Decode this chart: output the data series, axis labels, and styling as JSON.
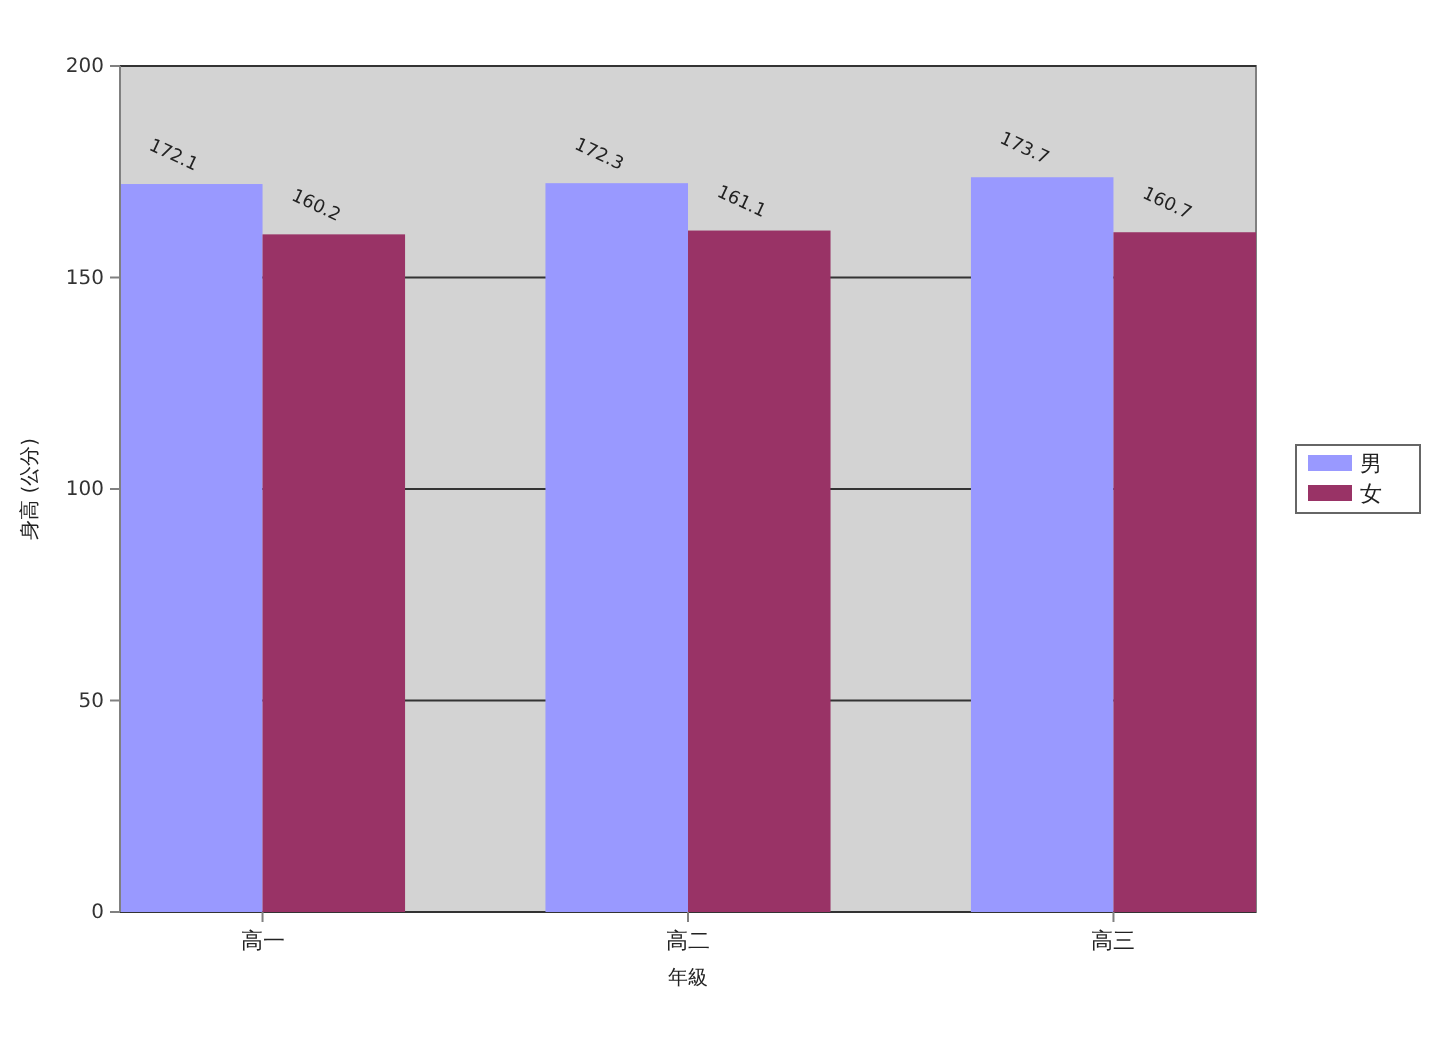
{
  "chart_data": {
    "type": "bar",
    "xlabel": "年級",
    "ylabel": "身高 (公分)",
    "categories": [
      "高一",
      "高二",
      "高三"
    ],
    "series": [
      {
        "name": "男",
        "color": "#9999ff",
        "values": [
          172.1,
          172.3,
          173.7
        ]
      },
      {
        "name": "女",
        "color": "#993366",
        "values": [
          160.2,
          161.1,
          160.7
        ]
      }
    ],
    "ylim": [
      0,
      200
    ],
    "yticks": [
      0,
      50,
      100,
      150,
      200
    ],
    "grid": "y",
    "legend": "right",
    "data_labels": true
  }
}
